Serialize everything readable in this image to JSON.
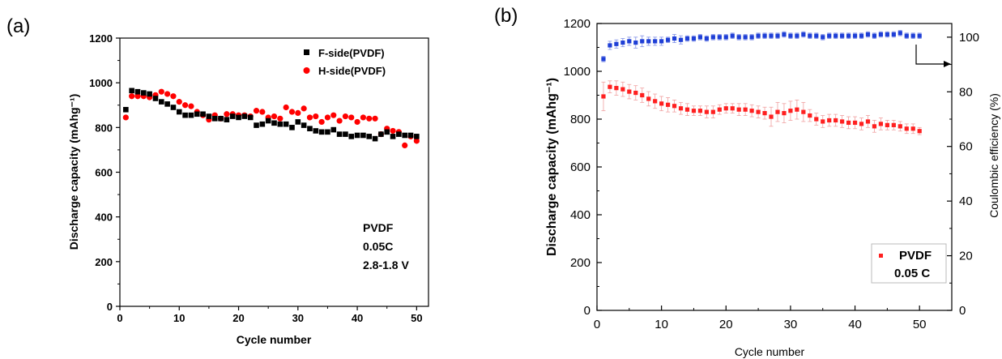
{
  "panels": {
    "a": {
      "label": "(a)"
    },
    "b": {
      "label": "(b)"
    }
  },
  "chart_data": [
    {
      "type": "scatter",
      "panel": "(a)",
      "title": "",
      "xlabel": "Cycle number",
      "ylabel": "Discharge capacity (mAhg⁻¹)",
      "xlim": [
        0,
        52
      ],
      "ylim": [
        0,
        1200
      ],
      "xticks": [
        0,
        10,
        20,
        30,
        40,
        50
      ],
      "yticks": [
        0,
        200,
        400,
        600,
        800,
        1000,
        1200
      ],
      "legend_position": "top-right",
      "annotation": [
        "PVDF",
        "0.05C",
        "2.8-1.8 V"
      ],
      "series": [
        {
          "name": "F-side(PVDF)",
          "marker": "square",
          "color": "#000000",
          "x": [
            1,
            2,
            3,
            4,
            5,
            6,
            7,
            8,
            9,
            10,
            11,
            12,
            13,
            14,
            15,
            16,
            17,
            18,
            19,
            20,
            21,
            22,
            23,
            24,
            25,
            26,
            27,
            28,
            29,
            30,
            31,
            32,
            33,
            34,
            35,
            36,
            37,
            38,
            39,
            40,
            41,
            42,
            43,
            44,
            45,
            46,
            47,
            48,
            49,
            50
          ],
          "y": [
            880,
            965,
            960,
            955,
            950,
            930,
            915,
            905,
            890,
            870,
            855,
            855,
            860,
            860,
            850,
            840,
            840,
            835,
            850,
            845,
            850,
            845,
            810,
            815,
            830,
            820,
            815,
            815,
            800,
            825,
            810,
            795,
            785,
            780,
            780,
            790,
            770,
            770,
            760,
            765,
            765,
            760,
            750,
            770,
            780,
            760,
            770,
            765,
            765,
            760
          ]
        },
        {
          "name": "H-side(PVDF)",
          "marker": "circle",
          "color": "#ff0000",
          "x": [
            1,
            2,
            3,
            4,
            5,
            6,
            7,
            8,
            9,
            10,
            11,
            12,
            13,
            14,
            15,
            16,
            17,
            18,
            19,
            20,
            21,
            22,
            23,
            24,
            25,
            26,
            27,
            28,
            29,
            30,
            31,
            32,
            33,
            34,
            35,
            36,
            37,
            38,
            39,
            40,
            41,
            42,
            43,
            44,
            45,
            46,
            47,
            48,
            49,
            50
          ],
          "y": [
            845,
            940,
            940,
            940,
            935,
            945,
            960,
            950,
            940,
            915,
            900,
            895,
            870,
            855,
            835,
            855,
            840,
            860,
            860,
            855,
            855,
            850,
            875,
            870,
            845,
            850,
            840,
            890,
            870,
            865,
            885,
            845,
            850,
            825,
            845,
            855,
            830,
            850,
            845,
            825,
            845,
            840,
            840,
            770,
            795,
            785,
            780,
            720,
            760,
            740
          ]
        }
      ]
    },
    {
      "type": "scatter",
      "panel": "(b)",
      "title": "",
      "xlabel": "Cycle number",
      "ylabel": "Discharge capacity (mAhg⁻¹)",
      "y2label": "Coulombic efficiency (%)",
      "xlim": [
        0,
        55
      ],
      "ylim": [
        0,
        1200
      ],
      "y2lim": [
        0,
        105
      ],
      "xticks": [
        0,
        10,
        20,
        30,
        40,
        50
      ],
      "yticks": [
        0,
        200,
        400,
        600,
        800,
        1000,
        1200
      ],
      "y2ticks": [
        0,
        20,
        40,
        60,
        80,
        100
      ],
      "legend_position": "bottom-right",
      "legend_text": [
        "PVDF",
        "0.05 C"
      ],
      "series": [
        {
          "name": "PVDF",
          "axis": "left",
          "marker": "square",
          "color": "#ff2020",
          "x": [
            1,
            2,
            3,
            4,
            5,
            6,
            7,
            8,
            9,
            10,
            11,
            12,
            13,
            14,
            15,
            16,
            17,
            18,
            19,
            20,
            21,
            22,
            23,
            24,
            25,
            26,
            27,
            28,
            29,
            30,
            31,
            32,
            33,
            34,
            35,
            36,
            37,
            38,
            39,
            40,
            41,
            42,
            43,
            44,
            45,
            46,
            47,
            48,
            49,
            50
          ],
          "y": [
            895,
            935,
            930,
            925,
            915,
            910,
            900,
            885,
            875,
            865,
            860,
            855,
            845,
            840,
            835,
            835,
            830,
            830,
            840,
            845,
            845,
            840,
            840,
            835,
            830,
            825,
            810,
            830,
            825,
            835,
            840,
            830,
            815,
            800,
            790,
            795,
            795,
            790,
            785,
            785,
            780,
            790,
            770,
            780,
            775,
            775,
            770,
            760,
            760,
            750
          ],
          "err": [
            60,
            25,
            30,
            30,
            30,
            30,
            30,
            30,
            30,
            30,
            30,
            25,
            25,
            25,
            20,
            20,
            25,
            25,
            20,
            20,
            20,
            25,
            25,
            25,
            25,
            25,
            40,
            40,
            40,
            40,
            40,
            40,
            25,
            25,
            25,
            25,
            25,
            25,
            25,
            25,
            25,
            25,
            25,
            25,
            20,
            20,
            20,
            20,
            20,
            15
          ]
        },
        {
          "name": "",
          "axis": "right",
          "marker": "square",
          "color": "#1f3fd6",
          "x": [
            1,
            2,
            3,
            4,
            5,
            6,
            7,
            8,
            9,
            10,
            11,
            12,
            13,
            14,
            15,
            16,
            17,
            18,
            19,
            20,
            21,
            22,
            23,
            24,
            25,
            26,
            27,
            28,
            29,
            30,
            31,
            32,
            33,
            34,
            35,
            36,
            37,
            38,
            39,
            40,
            41,
            42,
            43,
            44,
            45,
            46,
            47,
            48,
            49,
            50
          ],
          "y": [
            92,
            97,
            97.5,
            98,
            98.5,
            98,
            98.5,
            98.5,
            98.5,
            98.5,
            99,
            99.5,
            99,
            99.5,
            99.5,
            100,
            99.5,
            100,
            100,
            100,
            100.5,
            100,
            100,
            100,
            100.5,
            100.5,
            100.5,
            100.5,
            101,
            100.5,
            100.5,
            101,
            100.5,
            100.5,
            100,
            100.5,
            100.5,
            100.5,
            100.5,
            100.5,
            100.5,
            101,
            100.5,
            101,
            101,
            101,
            101.5,
            100.5,
            100.5,
            100.5
          ],
          "err": [
            1,
            1.5,
            1.5,
            1.5,
            1.5,
            2,
            2,
            1.5,
            1.5,
            1.5,
            1,
            1.5,
            1.5,
            1,
            1,
            1,
            1,
            1,
            1,
            1,
            1,
            1,
            1,
            1,
            1,
            1,
            1,
            1,
            1,
            1,
            1,
            1,
            1,
            1,
            1,
            1,
            1,
            1,
            1,
            1,
            1,
            1,
            1,
            1,
            1,
            1,
            1,
            1,
            1,
            1
          ]
        }
      ]
    }
  ]
}
